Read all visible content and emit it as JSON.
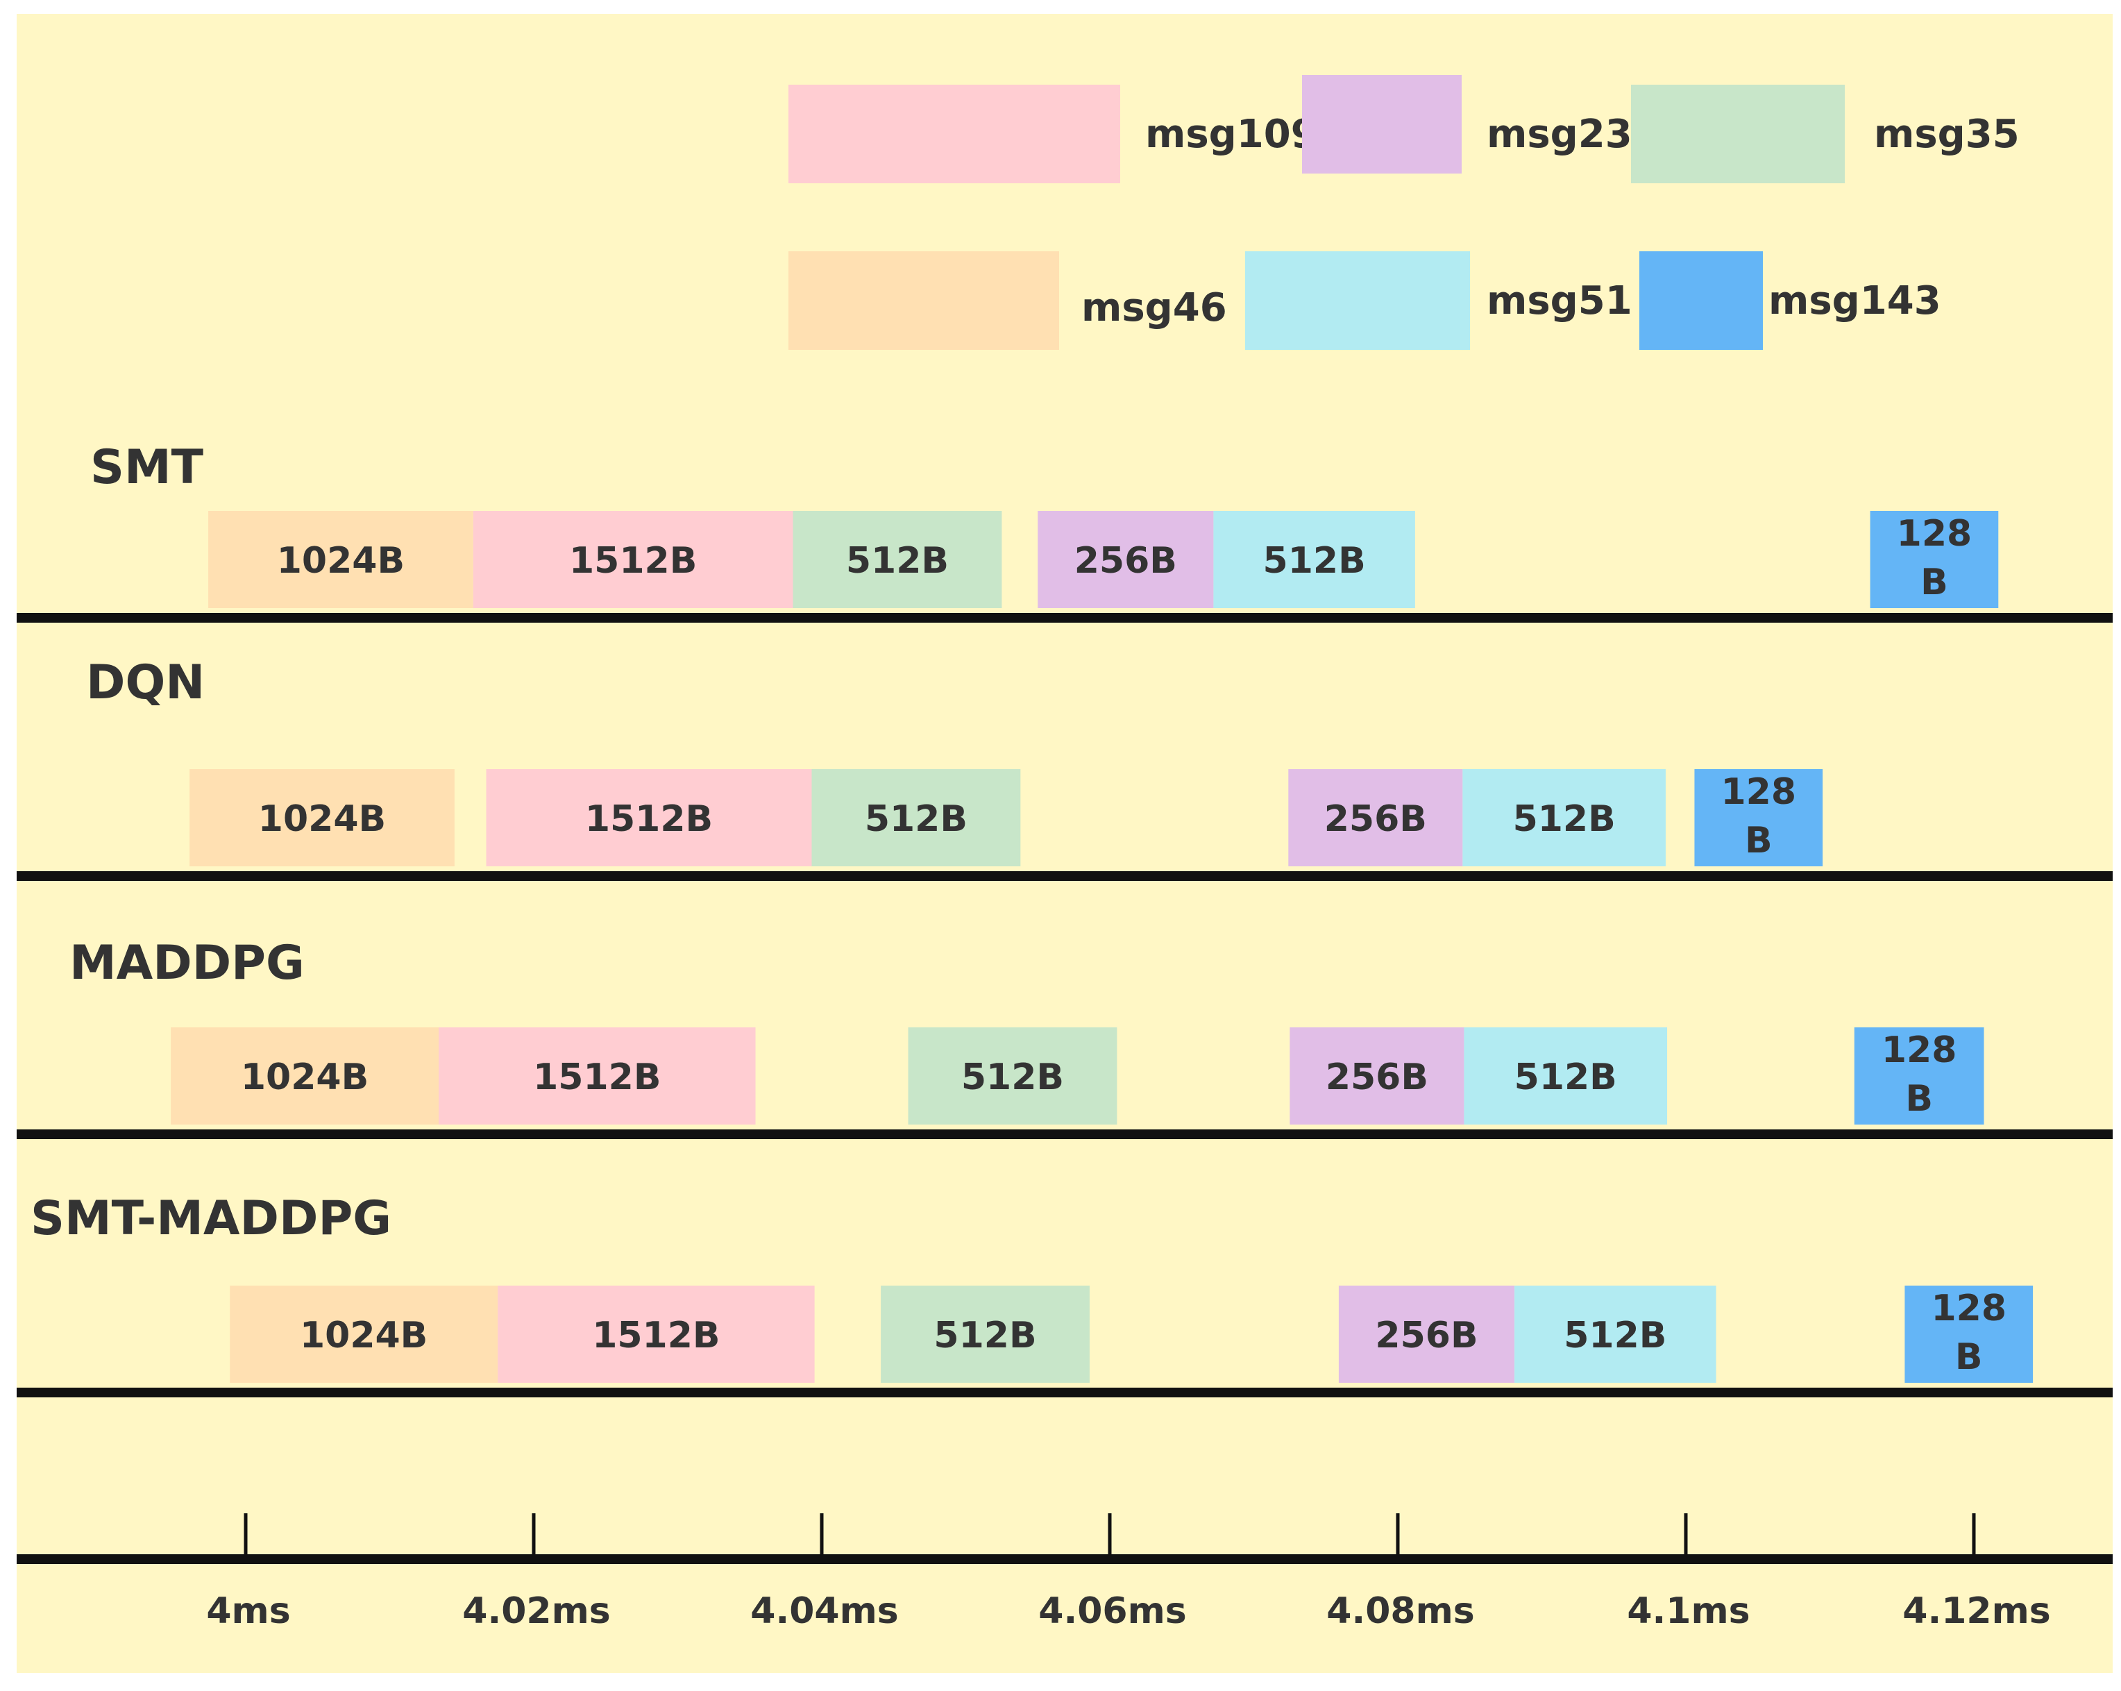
{
  "chart_data": {
    "type": "timeline",
    "background_color": "#FFF7C5",
    "bar_text_color": "#333333",
    "legend": [
      {
        "name": "msg109",
        "color": "#FFCDD2"
      },
      {
        "name": "msg23",
        "color": "#E1BEE7"
      },
      {
        "name": "msg35",
        "color": "#C8E6C9"
      },
      {
        "name": "msg46",
        "color": "#FFE0B2"
      },
      {
        "name": "msg51",
        "color": "#B2EBF2"
      },
      {
        "name": "msg143",
        "color": "#64B5F6"
      }
    ],
    "x_axis": {
      "unit": "ms",
      "ticks": [
        {
          "value": 4.0,
          "label": "4ms"
        },
        {
          "value": 4.02,
          "label": "4.02ms"
        },
        {
          "value": 4.04,
          "label": "4.04ms"
        },
        {
          "value": 4.06,
          "label": "4.06ms"
        },
        {
          "value": 4.08,
          "label": "4.08ms"
        },
        {
          "value": 4.1,
          "label": "4.1ms"
        },
        {
          "value": 4.12,
          "label": "4.12ms"
        }
      ]
    },
    "rows": [
      {
        "name": "SMT",
        "bars": [
          {
            "msg": "msg46",
            "label": "1024B",
            "start": 3.9974,
            "end": 4.0158
          },
          {
            "msg": "msg109",
            "label": "1512B",
            "start": 4.0158,
            "end": 4.038
          },
          {
            "msg": "msg35",
            "label": "512B",
            "start": 4.038,
            "end": 4.0525
          },
          {
            "msg": "msg23",
            "label": "256B",
            "start": 4.055,
            "end": 4.0672
          },
          {
            "msg": "msg51",
            "label": "512B",
            "start": 4.0672,
            "end": 4.0812
          },
          {
            "msg": "msg143",
            "label": "128\nB",
            "start": 4.1128,
            "end": 4.1217
          }
        ]
      },
      {
        "name": "DQN",
        "bars": [
          {
            "msg": "msg46",
            "label": "1024B",
            "start": 3.9961,
            "end": 4.0145
          },
          {
            "msg": "msg109",
            "label": "1512B",
            "start": 4.0167,
            "end": 4.0393
          },
          {
            "msg": "msg35",
            "label": "512B",
            "start": 4.0393,
            "end": 4.0538
          },
          {
            "msg": "msg23",
            "label": "256B",
            "start": 4.0724,
            "end": 4.0845
          },
          {
            "msg": "msg51",
            "label": "512B",
            "start": 4.0845,
            "end": 4.0986
          },
          {
            "msg": "msg143",
            "label": "128\nB",
            "start": 4.1006,
            "end": 4.1095
          }
        ]
      },
      {
        "name": "MADDPG",
        "bars": [
          {
            "msg": "msg46",
            "label": "1024B",
            "start": 3.9948,
            "end": 4.0134
          },
          {
            "msg": "msg109",
            "label": "1512B",
            "start": 4.0134,
            "end": 4.0354
          },
          {
            "msg": "msg35",
            "label": "512B",
            "start": 4.046,
            "end": 4.0605
          },
          {
            "msg": "msg23",
            "label": "256B",
            "start": 4.0725,
            "end": 4.0846
          },
          {
            "msg": "msg51",
            "label": "512B",
            "start": 4.0846,
            "end": 4.0987
          },
          {
            "msg": "msg143",
            "label": "128\nB",
            "start": 4.1117,
            "end": 4.1207
          }
        ]
      },
      {
        "name": "SMT-MADDPG",
        "bars": [
          {
            "msg": "msg46",
            "label": "1024B",
            "start": 3.9989,
            "end": 4.0175
          },
          {
            "msg": "msg109",
            "label": "1512B",
            "start": 4.0175,
            "end": 4.0395
          },
          {
            "msg": "msg35",
            "label": "512B",
            "start": 4.0441,
            "end": 4.0586
          },
          {
            "msg": "msg23",
            "label": "256B",
            "start": 4.0759,
            "end": 4.0881
          },
          {
            "msg": "msg51",
            "label": "512B",
            "start": 4.0881,
            "end": 4.1021
          },
          {
            "msg": "msg143",
            "label": "128\nB",
            "start": 4.1152,
            "end": 4.1241
          }
        ]
      }
    ]
  }
}
